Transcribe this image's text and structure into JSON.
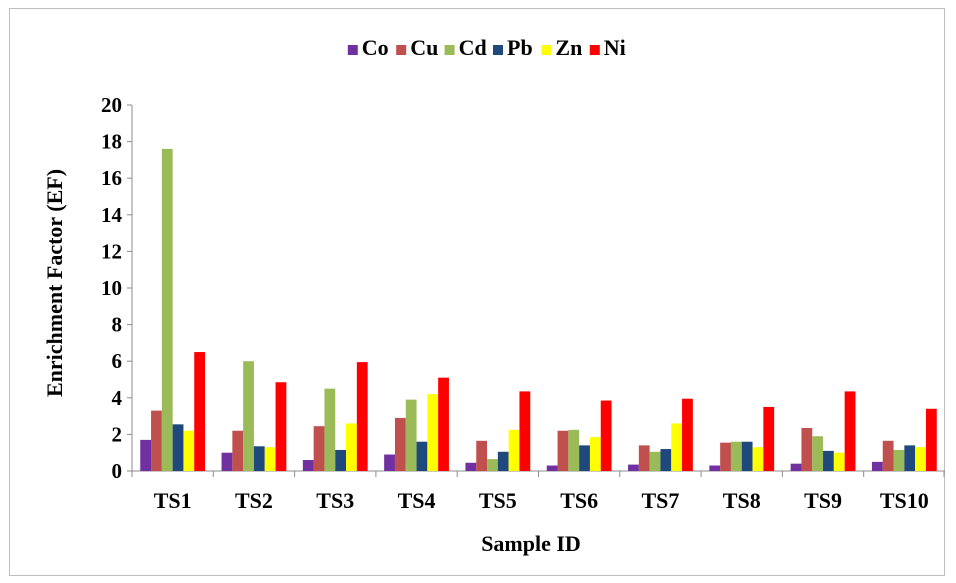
{
  "chart_data": {
    "type": "bar",
    "title": "",
    "xlabel": "Sample ID",
    "ylabel": "Enrichment Factor (EF)",
    "ylim": [
      0,
      20
    ],
    "yticks": [
      "0",
      "2",
      "4",
      "6",
      "8",
      "10",
      "12",
      "14",
      "16",
      "18",
      "20"
    ],
    "grid": false,
    "legend_position": "top",
    "categories": [
      "TS1",
      "TS2",
      "TS3",
      "TS4",
      "TS5",
      "TS6",
      "TS7",
      "TS8",
      "TS9",
      "TS10"
    ],
    "series": [
      {
        "name": "Co",
        "color": "#7030a0",
        "values": [
          1.7,
          1.0,
          0.6,
          0.9,
          0.45,
          0.3,
          0.35,
          0.3,
          0.4,
          0.5
        ]
      },
      {
        "name": "Cu",
        "color": "#c0504d",
        "values": [
          3.3,
          2.2,
          2.45,
          2.9,
          1.65,
          2.2,
          1.4,
          1.55,
          2.35,
          1.65
        ]
      },
      {
        "name": "Cd",
        "color": "#9bbb59",
        "values": [
          17.6,
          6.0,
          4.5,
          3.9,
          0.65,
          2.25,
          1.05,
          1.6,
          1.9,
          1.15
        ]
      },
      {
        "name": "Pb",
        "color": "#1f497d",
        "values": [
          2.55,
          1.35,
          1.15,
          1.6,
          1.05,
          1.4,
          1.2,
          1.6,
          1.1,
          1.4
        ]
      },
      {
        "name": "Zn",
        "color": "#ffff00",
        "values": [
          2.2,
          1.3,
          2.6,
          4.2,
          2.25,
          1.85,
          2.6,
          1.3,
          1.0,
          1.3
        ]
      },
      {
        "name": "Ni",
        "color": "#ff0000",
        "values": [
          6.5,
          4.85,
          5.95,
          5.1,
          4.35,
          3.85,
          3.95,
          3.5,
          4.35,
          3.4
        ]
      }
    ]
  }
}
